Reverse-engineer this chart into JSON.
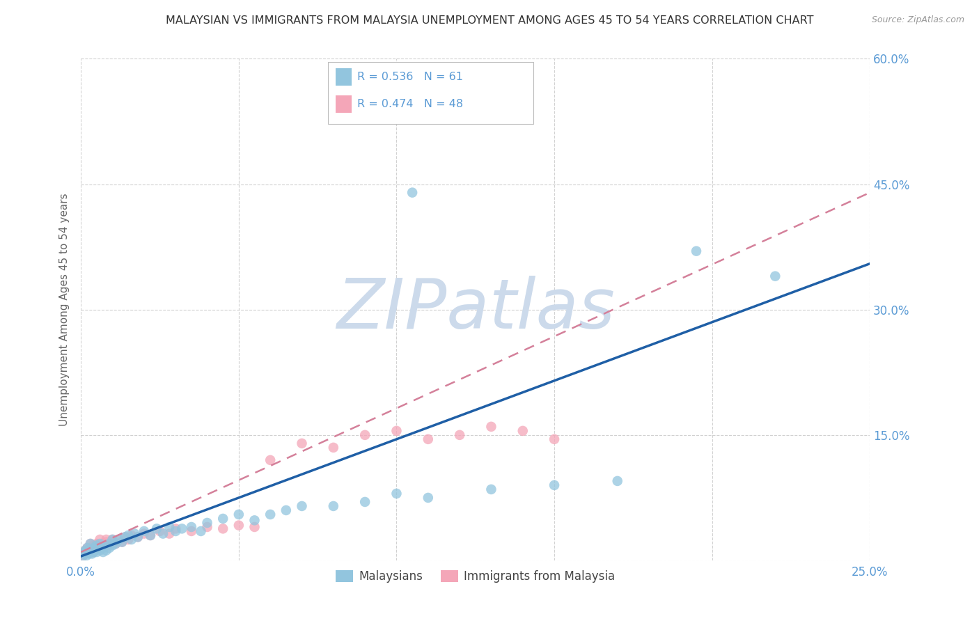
{
  "title": "MALAYSIAN VS IMMIGRANTS FROM MALAYSIA UNEMPLOYMENT AMONG AGES 45 TO 54 YEARS CORRELATION CHART",
  "source": "Source: ZipAtlas.com",
  "ylabel": "Unemployment Among Ages 45 to 54 years",
  "xmin": 0.0,
  "xmax": 0.25,
  "ymin": 0.0,
  "ymax": 0.6,
  "x_tick_positions": [
    0.0,
    0.05,
    0.1,
    0.15,
    0.2,
    0.25
  ],
  "x_tick_labels": [
    "0.0%",
    "",
    "",
    "",
    "",
    "25.0%"
  ],
  "y_tick_positions": [
    0.0,
    0.15,
    0.3,
    0.45,
    0.6
  ],
  "y_tick_labels_right": [
    "",
    "15.0%",
    "30.0%",
    "45.0%",
    "60.0%"
  ],
  "legend1_label": "Malaysians",
  "legend2_label": "Immigrants from Malaysia",
  "r1": 0.536,
  "n1": 61,
  "r2": 0.474,
  "n2": 48,
  "color_blue": "#92c5de",
  "color_pink": "#f4a6b8",
  "color_line_blue": "#1f5fa6",
  "color_line_pink": "#d4809a",
  "watermark_text": "ZIPatlas",
  "watermark_color": "#ccdaeb",
  "grid_color": "#cccccc",
  "tick_color": "#5b9bd5",
  "background_color": "#ffffff",
  "mal_x": [
    0.0005,
    0.001,
    0.0012,
    0.0015,
    0.0018,
    0.002,
    0.0022,
    0.0025,
    0.003,
    0.003,
    0.0035,
    0.004,
    0.004,
    0.0045,
    0.005,
    0.005,
    0.0055,
    0.006,
    0.006,
    0.007,
    0.007,
    0.008,
    0.008,
    0.009,
    0.009,
    0.01,
    0.01,
    0.011,
    0.012,
    0.013,
    0.014,
    0.015,
    0.016,
    0.017,
    0.018,
    0.02,
    0.022,
    0.024,
    0.026,
    0.028,
    0.03,
    0.032,
    0.035,
    0.038,
    0.04,
    0.045,
    0.05,
    0.055,
    0.06,
    0.065,
    0.07,
    0.08,
    0.09,
    0.1,
    0.105,
    0.11,
    0.13,
    0.15,
    0.17,
    0.195,
    0.22
  ],
  "mal_y": [
    0.005,
    0.01,
    0.008,
    0.012,
    0.006,
    0.015,
    0.01,
    0.008,
    0.012,
    0.02,
    0.008,
    0.015,
    0.01,
    0.012,
    0.018,
    0.01,
    0.015,
    0.012,
    0.02,
    0.015,
    0.01,
    0.018,
    0.012,
    0.02,
    0.015,
    0.018,
    0.025,
    0.02,
    0.025,
    0.022,
    0.028,
    0.03,
    0.025,
    0.032,
    0.028,
    0.035,
    0.03,
    0.038,
    0.032,
    0.04,
    0.035,
    0.038,
    0.04,
    0.035,
    0.045,
    0.05,
    0.055,
    0.048,
    0.055,
    0.06,
    0.065,
    0.065,
    0.07,
    0.08,
    0.44,
    0.075,
    0.085,
    0.09,
    0.095,
    0.37,
    0.34
  ],
  "imm_x": [
    0.0005,
    0.001,
    0.0012,
    0.0015,
    0.002,
    0.002,
    0.0025,
    0.003,
    0.003,
    0.004,
    0.004,
    0.005,
    0.005,
    0.006,
    0.006,
    0.007,
    0.008,
    0.008,
    0.009,
    0.01,
    0.01,
    0.011,
    0.012,
    0.013,
    0.014,
    0.015,
    0.016,
    0.018,
    0.02,
    0.022,
    0.025,
    0.028,
    0.03,
    0.035,
    0.04,
    0.045,
    0.05,
    0.055,
    0.06,
    0.07,
    0.08,
    0.09,
    0.1,
    0.11,
    0.12,
    0.13,
    0.14,
    0.15
  ],
  "imm_y": [
    0.005,
    0.008,
    0.01,
    0.012,
    0.01,
    0.015,
    0.012,
    0.015,
    0.02,
    0.01,
    0.018,
    0.015,
    0.02,
    0.018,
    0.025,
    0.02,
    0.022,
    0.025,
    0.018,
    0.022,
    0.025,
    0.02,
    0.025,
    0.022,
    0.028,
    0.025,
    0.03,
    0.028,
    0.032,
    0.03,
    0.035,
    0.032,
    0.038,
    0.035,
    0.04,
    0.038,
    0.042,
    0.04,
    0.12,
    0.14,
    0.135,
    0.15,
    0.155,
    0.145,
    0.15,
    0.16,
    0.155,
    0.145
  ],
  "line_blue_x0": 0.0,
  "line_blue_y0": 0.005,
  "line_blue_x1": 0.25,
  "line_blue_y1": 0.355,
  "line_pink_x0": 0.0,
  "line_pink_y0": 0.01,
  "line_pink_x1": 0.25,
  "line_pink_y1": 0.44
}
